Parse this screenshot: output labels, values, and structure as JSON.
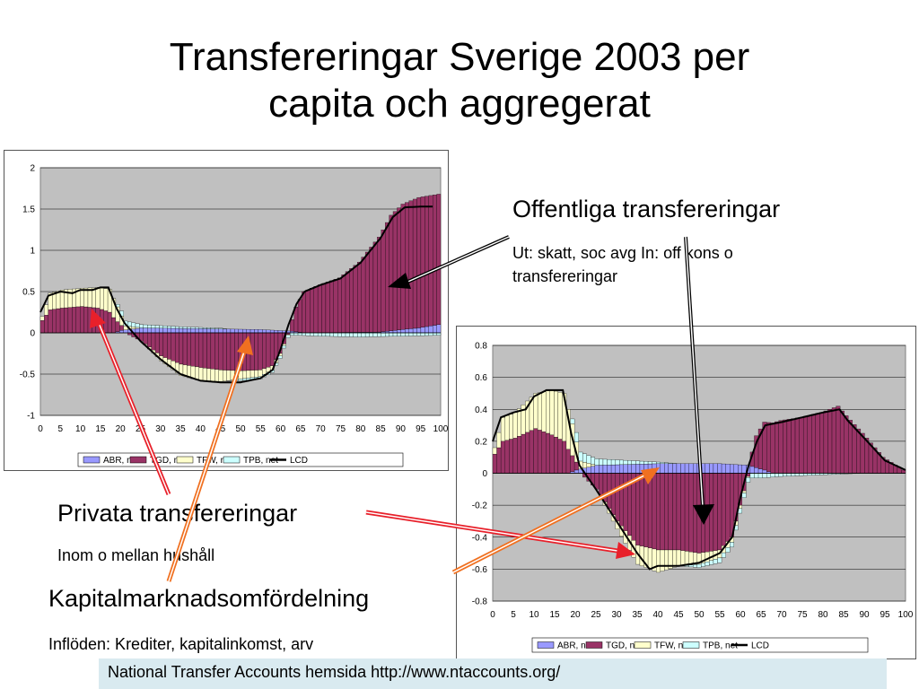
{
  "page": {
    "title_line1": "Transfereringar Sverige 2003 per",
    "title_line2": "capita och aggregerat",
    "offentliga_title": "Offentliga transfereringar",
    "offentliga_sub_line1": "Ut: skatt, soc avg In: off kons o",
    "offentliga_sub_line2": "transfereringar",
    "privata_title": "Privata transfereringar",
    "privata_sub": "Inom o mellan hushåll",
    "kapital_title": "Kapitalmarknadsomfördelning",
    "kapital_sub": "Inflöden: Krediter, kapitalinkomst, arv",
    "footer": "National Transfer Accounts hemsida http://www.ntaccounts.org/"
  },
  "colors": {
    "ABR": "#9999ff",
    "TGD": "#993366",
    "TFW": "#ffffcc",
    "TPB": "#ccffff",
    "LCD": "#000000",
    "plot_bg": "#c0c0c0",
    "arrow_red": "#e8202a",
    "arrow_orange": "#f07020"
  },
  "chart_data": [
    {
      "type": "bar",
      "stacked": true,
      "with_line": "LCD",
      "x_ticks": [
        0,
        5,
        10,
        15,
        20,
        25,
        30,
        35,
        40,
        45,
        50,
        55,
        60,
        65,
        70,
        75,
        80,
        85,
        90,
        95,
        100
      ],
      "y_ticks": [
        2,
        1.5,
        1,
        0.5,
        0,
        -0.5,
        -1
      ],
      "ylim": [
        -1,
        2
      ],
      "xlim": [
        0,
        100
      ],
      "grid": true,
      "legend_position": "bottom",
      "legend": [
        "ABR, net",
        "TGD, net",
        "TFW, net",
        "TPB, net",
        "LCD"
      ],
      "series_keys": {
        "ABR": "ABR, net",
        "TGD": "TGD, net",
        "TFW": "TFW, net",
        "TPB": "TPB, net",
        "LCD": "LCD"
      },
      "knots": {
        "ABR": [
          [
            0,
            0
          ],
          [
            18,
            0
          ],
          [
            20,
            0.03
          ],
          [
            25,
            0.06
          ],
          [
            40,
            0.05
          ],
          [
            55,
            0.04
          ],
          [
            63,
            0.02
          ],
          [
            66,
            0
          ],
          [
            85,
            0.01
          ],
          [
            95,
            0.06
          ],
          [
            100,
            0.1
          ]
        ],
        "TGD": [
          [
            0,
            0.15
          ],
          [
            2,
            0.28
          ],
          [
            5,
            0.3
          ],
          [
            10,
            0.32
          ],
          [
            14,
            0.3
          ],
          [
            17,
            0.25
          ],
          [
            19,
            0.12
          ],
          [
            21,
            0.0
          ],
          [
            25,
            -0.1
          ],
          [
            30,
            -0.28
          ],
          [
            35,
            -0.38
          ],
          [
            40,
            -0.42
          ],
          [
            45,
            -0.45
          ],
          [
            50,
            -0.46
          ],
          [
            55,
            -0.45
          ],
          [
            58,
            -0.4
          ],
          [
            60,
            -0.25
          ],
          [
            62,
            -0.02
          ],
          [
            64,
            0.3
          ],
          [
            66,
            0.5
          ],
          [
            70,
            0.58
          ],
          [
            75,
            0.66
          ],
          [
            80,
            0.85
          ],
          [
            85,
            1.15
          ],
          [
            88,
            1.4
          ],
          [
            91,
            1.52
          ],
          [
            95,
            1.58
          ],
          [
            100,
            1.58
          ]
        ],
        "TFW": [
          [
            0,
            0.05
          ],
          [
            2,
            0.2
          ],
          [
            5,
            0.22
          ],
          [
            10,
            0.22
          ],
          [
            14,
            0.25
          ],
          [
            17,
            0.28
          ],
          [
            19,
            0.18
          ],
          [
            21,
            0.05
          ],
          [
            25,
            0
          ],
          [
            30,
            -0.06
          ],
          [
            35,
            -0.14
          ],
          [
            40,
            -0.16
          ],
          [
            45,
            -0.14
          ],
          [
            50,
            -0.1
          ],
          [
            55,
            -0.08
          ],
          [
            60,
            -0.03
          ],
          [
            63,
            0
          ],
          [
            100,
            0
          ]
        ],
        "TPB": [
          [
            0,
            0
          ],
          [
            18,
            0
          ],
          [
            20,
            0.06
          ],
          [
            25,
            0.04
          ],
          [
            35,
            0.02
          ],
          [
            45,
            0.01
          ],
          [
            50,
            -0.02
          ],
          [
            55,
            -0.03
          ],
          [
            60,
            -0.03
          ],
          [
            65,
            -0.03
          ],
          [
            70,
            -0.04
          ],
          [
            80,
            -0.05
          ],
          [
            90,
            -0.04
          ],
          [
            100,
            -0.03
          ]
        ],
        "LCD": [
          [
            0,
            0.25
          ],
          [
            2,
            0.45
          ],
          [
            5,
            0.5
          ],
          [
            8,
            0.48
          ],
          [
            10,
            0.52
          ],
          [
            13,
            0.52
          ],
          [
            15,
            0.55
          ],
          [
            17,
            0.55
          ],
          [
            19,
            0.3
          ],
          [
            21,
            0.12
          ],
          [
            25,
            -0.1
          ],
          [
            30,
            -0.32
          ],
          [
            35,
            -0.5
          ],
          [
            40,
            -0.58
          ],
          [
            45,
            -0.6
          ],
          [
            50,
            -0.6
          ],
          [
            55,
            -0.55
          ],
          [
            58,
            -0.45
          ],
          [
            60,
            -0.2
          ],
          [
            62,
            0.1
          ],
          [
            64,
            0.35
          ],
          [
            66,
            0.5
          ],
          [
            70,
            0.58
          ],
          [
            75,
            0.66
          ],
          [
            80,
            0.85
          ],
          [
            85,
            1.15
          ],
          [
            88,
            1.4
          ],
          [
            91,
            1.52
          ],
          [
            95,
            1.53
          ],
          [
            98,
            1.53
          ]
        ]
      }
    },
    {
      "type": "bar",
      "stacked": true,
      "with_line": "LCD",
      "x_ticks": [
        0,
        5,
        10,
        15,
        20,
        25,
        30,
        35,
        40,
        45,
        50,
        55,
        60,
        65,
        70,
        75,
        80,
        85,
        90,
        95,
        100
      ],
      "y_ticks": [
        0.8,
        0.6,
        0.4,
        0.2,
        0,
        -0.2,
        -0.4,
        -0.6,
        -0.8
      ],
      "ylim": [
        -0.8,
        0.8
      ],
      "xlim": [
        0,
        100
      ],
      "grid": true,
      "legend_position": "bottom",
      "legend": [
        "ABR, net",
        "TGD, net",
        "TFW, net",
        "TPB, net",
        "LCD"
      ],
      "series_keys": {
        "ABR": "ABR, net",
        "TGD": "TGD, net",
        "TFW": "TFW, net",
        "TPB": "TPB, net",
        "LCD": "LCD"
      },
      "knots": {
        "ABR": [
          [
            0,
            0
          ],
          [
            18,
            0
          ],
          [
            20,
            0.02
          ],
          [
            25,
            0.05
          ],
          [
            40,
            0.06
          ],
          [
            55,
            0.06
          ],
          [
            62,
            0.05
          ],
          [
            66,
            0.02
          ],
          [
            68,
            0
          ],
          [
            100,
            0
          ]
        ],
        "TGD": [
          [
            0,
            0.12
          ],
          [
            2,
            0.2
          ],
          [
            5,
            0.22
          ],
          [
            10,
            0.28
          ],
          [
            14,
            0.24
          ],
          [
            17,
            0.2
          ],
          [
            19,
            0.1
          ],
          [
            21,
            0
          ],
          [
            25,
            -0.1
          ],
          [
            30,
            -0.3
          ],
          [
            35,
            -0.45
          ],
          [
            40,
            -0.48
          ],
          [
            45,
            -0.48
          ],
          [
            50,
            -0.5
          ],
          [
            55,
            -0.48
          ],
          [
            58,
            -0.4
          ],
          [
            60,
            -0.2
          ],
          [
            62,
            -0.02
          ],
          [
            64,
            0.2
          ],
          [
            66,
            0.3
          ],
          [
            70,
            0.33
          ],
          [
            75,
            0.35
          ],
          [
            80,
            0.38
          ],
          [
            84,
            0.42
          ],
          [
            86,
            0.36
          ],
          [
            90,
            0.25
          ],
          [
            95,
            0.1
          ],
          [
            100,
            0.02
          ]
        ],
        "TFW": [
          [
            0,
            0.04
          ],
          [
            2,
            0.15
          ],
          [
            5,
            0.16
          ],
          [
            10,
            0.22
          ],
          [
            14,
            0.28
          ],
          [
            17,
            0.3
          ],
          [
            19,
            0.2
          ],
          [
            21,
            0.05
          ],
          [
            25,
            0
          ],
          [
            30,
            -0.05
          ],
          [
            35,
            -0.12
          ],
          [
            40,
            -0.14
          ],
          [
            45,
            -0.1
          ],
          [
            50,
            -0.07
          ],
          [
            55,
            -0.05
          ],
          [
            60,
            -0.02
          ],
          [
            63,
            0
          ],
          [
            100,
            0
          ]
        ],
        "TPB": [
          [
            0,
            0
          ],
          [
            18,
            0
          ],
          [
            20,
            0.06
          ],
          [
            25,
            0.04
          ],
          [
            35,
            0.02
          ],
          [
            45,
            0.0
          ],
          [
            50,
            -0.02
          ],
          [
            55,
            -0.03
          ],
          [
            60,
            -0.03
          ],
          [
            65,
            -0.03
          ],
          [
            70,
            -0.02
          ],
          [
            80,
            -0.01
          ],
          [
            90,
            0
          ],
          [
            100,
            0
          ]
        ],
        "LCD": [
          [
            0,
            0.2
          ],
          [
            2,
            0.35
          ],
          [
            5,
            0.38
          ],
          [
            8,
            0.4
          ],
          [
            10,
            0.48
          ],
          [
            13,
            0.52
          ],
          [
            17,
            0.52
          ],
          [
            19,
            0.25
          ],
          [
            21,
            0.05
          ],
          [
            25,
            -0.1
          ],
          [
            30,
            -0.3
          ],
          [
            35,
            -0.5
          ],
          [
            38,
            -0.6
          ],
          [
            40,
            -0.58
          ],
          [
            45,
            -0.58
          ],
          [
            50,
            -0.56
          ],
          [
            55,
            -0.5
          ],
          [
            58,
            -0.4
          ],
          [
            60,
            -0.15
          ],
          [
            62,
            0.05
          ],
          [
            64,
            0.2
          ],
          [
            66,
            0.3
          ],
          [
            70,
            0.32
          ],
          [
            75,
            0.35
          ],
          [
            80,
            0.38
          ],
          [
            84,
            0.4
          ],
          [
            86,
            0.33
          ],
          [
            90,
            0.22
          ],
          [
            95,
            0.08
          ],
          [
            100,
            0.02
          ]
        ]
      }
    }
  ]
}
